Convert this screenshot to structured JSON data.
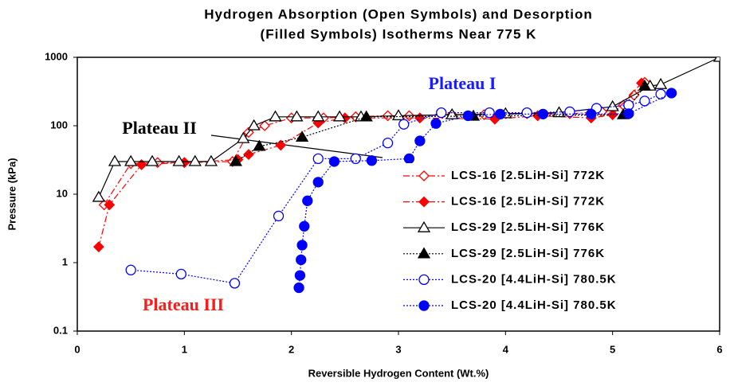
{
  "chart_data": {
    "type": "line",
    "title": [
      "Hydrogen Absorption (Open Symbols) and Desorption",
      "(Filled Symbols) Isotherms Near 775 K"
    ],
    "x_label": "Reversible Hydrogen Content (Wt.%)",
    "y_label": "Pressure (kPa)",
    "xlim": [
      0,
      6
    ],
    "xticks": [
      0,
      1,
      2,
      3,
      4,
      5,
      6
    ],
    "ylim": [
      0.1,
      1000
    ],
    "yticks": [
      0.1,
      1,
      10,
      100,
      1000
    ],
    "log_y": true,
    "grid": false,
    "legend": "lower right",
    "annotations": [
      {
        "text": "Plateau I",
        "color": "#1a1aff"
      },
      {
        "text": "Plateau II",
        "color": "#000000"
      },
      {
        "text": "Plateau III",
        "color": "#ff1a1a"
      }
    ],
    "series": [
      {
        "name": "LCS-16 [2.5LiH-Si] 772K",
        "color": "#ff0000",
        "marker": "diamond",
        "filled": false,
        "linestyle": "dashdot",
        "x": [
          0.25,
          0.5,
          0.75,
          1.0,
          1.45,
          1.6,
          1.75,
          2.0,
          2.3,
          2.6,
          2.9,
          3.1,
          3.5,
          3.8,
          4.2,
          4.6,
          4.9,
          5.1,
          5.2,
          5.3
        ],
        "values": [
          7,
          28,
          29,
          29,
          30,
          80,
          100,
          130,
          130,
          135,
          140,
          140,
          145,
          145,
          150,
          150,
          160,
          200,
          280,
          430
        ]
      },
      {
        "name": "LCS-16 [2.5LiH-Si] 772K",
        "color": "#ff0000",
        "marker": "diamond",
        "filled": true,
        "linestyle": "dashdot",
        "x": [
          0.2,
          0.3,
          0.6,
          1.0,
          1.5,
          1.6,
          1.9,
          2.25,
          2.5,
          3.2,
          3.9,
          4.3,
          4.8,
          5.0,
          5.27
        ],
        "values": [
          1.7,
          7,
          27,
          29,
          32,
          38,
          52,
          110,
          130,
          130,
          125,
          140,
          130,
          145,
          420
        ]
      },
      {
        "name": "LCS-29 [2.5LiH-Si] 776K",
        "color": "#000000",
        "marker": "triangle",
        "filled": false,
        "linestyle": "solid",
        "x": [
          0.2,
          0.35,
          0.5,
          0.7,
          0.95,
          1.1,
          1.25,
          1.55,
          1.65,
          1.85,
          2.05,
          2.25,
          2.45,
          2.65,
          3.0,
          3.5,
          4.0,
          4.5,
          5.0,
          5.35,
          5.45,
          6.0
        ],
        "values": [
          9,
          30,
          30,
          30,
          30,
          30,
          30,
          65,
          100,
          135,
          135,
          135,
          135,
          135,
          140,
          145,
          150,
          155,
          190,
          380,
          400,
          1000
        ]
      },
      {
        "name": "LCS-29 [2.5LiH-Si] 776K",
        "color": "#000000",
        "marker": "triangle",
        "filled": true,
        "linestyle": "dotted",
        "x": [
          1.48,
          1.7,
          2.1,
          2.7,
          3.7,
          5.1,
          5.3
        ],
        "values": [
          30,
          50,
          68,
          135,
          138,
          145,
          380
        ]
      },
      {
        "name": "LCS-20 [4.4LiH-Si] 780.5K",
        "color": "#0000ff",
        "marker": "circle",
        "filled": false,
        "linestyle": "dotted",
        "x": [
          0.5,
          0.97,
          1.47,
          1.88,
          2.25,
          2.6,
          2.9,
          3.05,
          3.4,
          3.85,
          4.2,
          4.6,
          4.85,
          5.15,
          5.3,
          5.45
        ],
        "values": [
          0.78,
          0.68,
          0.5,
          4.8,
          33,
          33,
          56,
          105,
          155,
          155,
          155,
          160,
          180,
          200,
          230,
          290
        ]
      },
      {
        "name": "LCS-20 [4.4LiH-Si] 780.5K",
        "color": "#0000ff",
        "marker": "circle",
        "filled": true,
        "linestyle": "dotted",
        "x": [
          2.07,
          2.08,
          2.09,
          2.1,
          2.12,
          2.15,
          2.25,
          2.4,
          2.75,
          3.1,
          3.2,
          3.35,
          3.65,
          3.95,
          4.35,
          4.8,
          5.15,
          5.55
        ],
        "values": [
          0.43,
          0.65,
          1.1,
          1.8,
          3.4,
          8,
          15,
          30,
          31,
          33,
          60,
          108,
          140,
          148,
          148,
          148,
          150,
          300
        ]
      }
    ]
  }
}
